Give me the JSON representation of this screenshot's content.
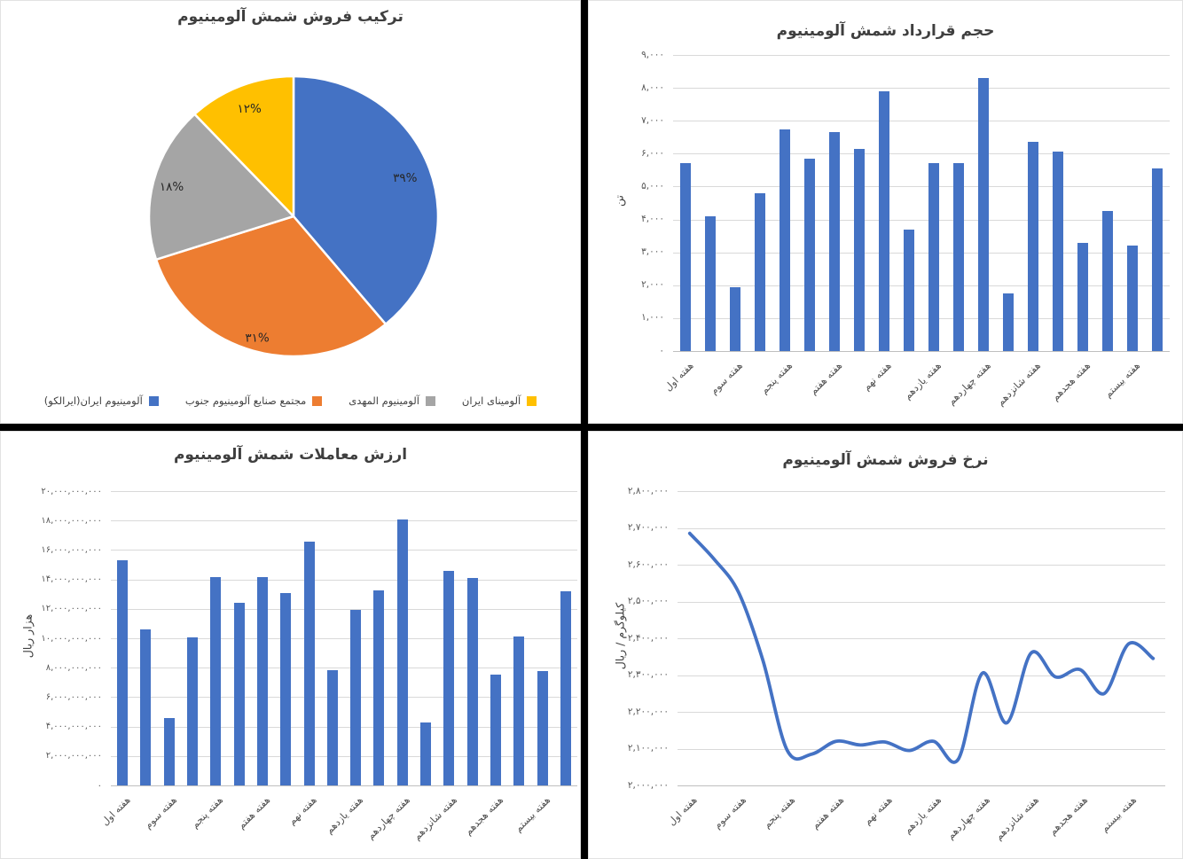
{
  "window": {
    "background": "#FFFFFF",
    "separator_color": "#000000"
  },
  "theme": {
    "accent_blue": "#4472C4",
    "accent_orange": "#ED7D31",
    "accent_gray": "#A5A5A5",
    "accent_yellow": "#FFC000",
    "gridline": "#D9D9D9",
    "axis_line": "#BFBFBF",
    "tick_text": "#595959",
    "title_text": "#3F3F3F"
  },
  "chart_data": [
    {
      "id": "aluminum-sales-composition",
      "type": "pie",
      "title": "ترکیب فروش شمش آلومینیوم",
      "labels": [
        "آلومینیوم ایران(ایرالکو)",
        "مجتمع صنایع آلومینیوم جنوب",
        "آلومینیوم المهدی",
        "آلومینای ایران"
      ],
      "values": [
        39,
        31,
        18,
        12
      ],
      "value_labels": [
        "۳۹%",
        "۳۱%",
        "۱۸%",
        "۱۲%"
      ],
      "colors": [
        "#4472C4",
        "#ED7D31",
        "#A5A5A5",
        "#FFC000"
      ],
      "start_angle_deg": 0,
      "direction": "clockwise",
      "legend_position": "bottom"
    },
    {
      "id": "aluminum-contract-volume",
      "type": "bar",
      "title": "حجم قرارداد شمش آلومینیوم",
      "ylabel": "تن",
      "ylim": [
        0,
        9000
      ],
      "ytick_labels": [
        "۹,۰۰۰",
        "۸,۰۰۰",
        "۷,۰۰۰",
        "۶,۰۰۰",
        "۵,۰۰۰",
        "۴,۰۰۰",
        "۳,۰۰۰",
        "۲,۰۰۰",
        "۱,۰۰۰",
        "۰"
      ],
      "x_tick_labels": [
        "هفته اول",
        "هفته سوم",
        "هفته پنجم",
        "هفته هفتم",
        "هفته نهم",
        "هفته یازدهم",
        "هفته چهاردهم",
        "هفته شانزدهم",
        "هفته هجدهم",
        "هفته بیستم"
      ],
      "xlabel_indices": [
        0,
        2,
        4,
        6,
        8,
        10,
        12,
        14,
        16,
        18
      ],
      "values": [
        5700,
        4100,
        1950,
        4800,
        6750,
        5850,
        6650,
        6150,
        7900,
        3700,
        5700,
        5700,
        8300,
        1750,
        6350,
        6050,
        3300,
        4250,
        3200,
        5550
      ],
      "bar_color": "#4472C4",
      "grid": true,
      "legend_position": "none"
    },
    {
      "id": "aluminum-trade-value",
      "type": "bar",
      "title": "ارزش معاملات شمش آلومینیوم",
      "ylabel": "هزار ریال",
      "ylim": [
        0,
        20000000000
      ],
      "ytick_labels": [
        "۲۰,۰۰۰,۰۰۰,۰۰۰",
        "۱۸,۰۰۰,۰۰۰,۰۰۰",
        "۱۶,۰۰۰,۰۰۰,۰۰۰",
        "۱۴,۰۰۰,۰۰۰,۰۰۰",
        "۱۲,۰۰۰,۰۰۰,۰۰۰",
        "۱۰,۰۰۰,۰۰۰,۰۰۰",
        "۸,۰۰۰,۰۰۰,۰۰۰",
        "۶,۰۰۰,۰۰۰,۰۰۰",
        "۴,۰۰۰,۰۰۰,۰۰۰",
        "۲,۰۰۰,۰۰۰,۰۰۰",
        "۰"
      ],
      "x_tick_labels": [
        "هفته اول",
        "هفته سوم",
        "هفته پنجم",
        "هفته هفتم",
        "هفته نهم",
        "هفته یازدهم",
        "هفته چهاردهم",
        "هفته شانزدهم",
        "هفته هجدهم",
        "هفته بیستم"
      ],
      "xlabel_indices": [
        0,
        2,
        4,
        6,
        8,
        10,
        12,
        14,
        16,
        18
      ],
      "values": [
        15300000000,
        10600000000,
        4550000000,
        10050000000,
        14150000000,
        12400000000,
        14150000000,
        13050000000,
        16550000000,
        7850000000,
        11900000000,
        13250000000,
        18100000000,
        4300000000,
        14550000000,
        14100000000,
        7550000000,
        10100000000,
        7800000000,
        13200000000
      ],
      "bar_color": "#4472C4",
      "grid": true,
      "legend_position": "none"
    },
    {
      "id": "aluminum-sale-rate",
      "type": "line",
      "title": "نرخ فروش شمش آلومینیوم",
      "ylabel": "کیلوگرم / ریال",
      "ylim": [
        2000000,
        2800000
      ],
      "ytick_labels": [
        "۲,۸۰۰,۰۰۰",
        "۲,۷۰۰,۰۰۰",
        "۲,۶۰۰,۰۰۰",
        "۲,۵۰۰,۰۰۰",
        "۲,۴۰۰,۰۰۰",
        "۲,۳۰۰,۰۰۰",
        "۲,۲۰۰,۰۰۰",
        "۲,۱۰۰,۰۰۰",
        "۲,۰۰۰,۰۰۰"
      ],
      "x_tick_labels": [
        "هفته اول",
        "هفته سوم",
        "هفته پنجم",
        "هفته هفتم",
        "هفته نهم",
        "هفته یازدهم",
        "هفته چهاردهم",
        "هفته شانزدهم",
        "هفته هجدهم",
        "هفته بیستم"
      ],
      "xlabel_indices": [
        0,
        2,
        4,
        6,
        8,
        10,
        12,
        14,
        16,
        18
      ],
      "values": [
        2685000,
        2615000,
        2525000,
        2340000,
        2095000,
        2085000,
        2120000,
        2110000,
        2118000,
        2095000,
        2120000,
        2070000,
        2305000,
        2170000,
        2360000,
        2295000,
        2315000,
        2250000,
        2385000,
        2345000
      ],
      "line_color": "#4472C4",
      "smooth": true,
      "grid": true,
      "legend_position": "none"
    }
  ]
}
